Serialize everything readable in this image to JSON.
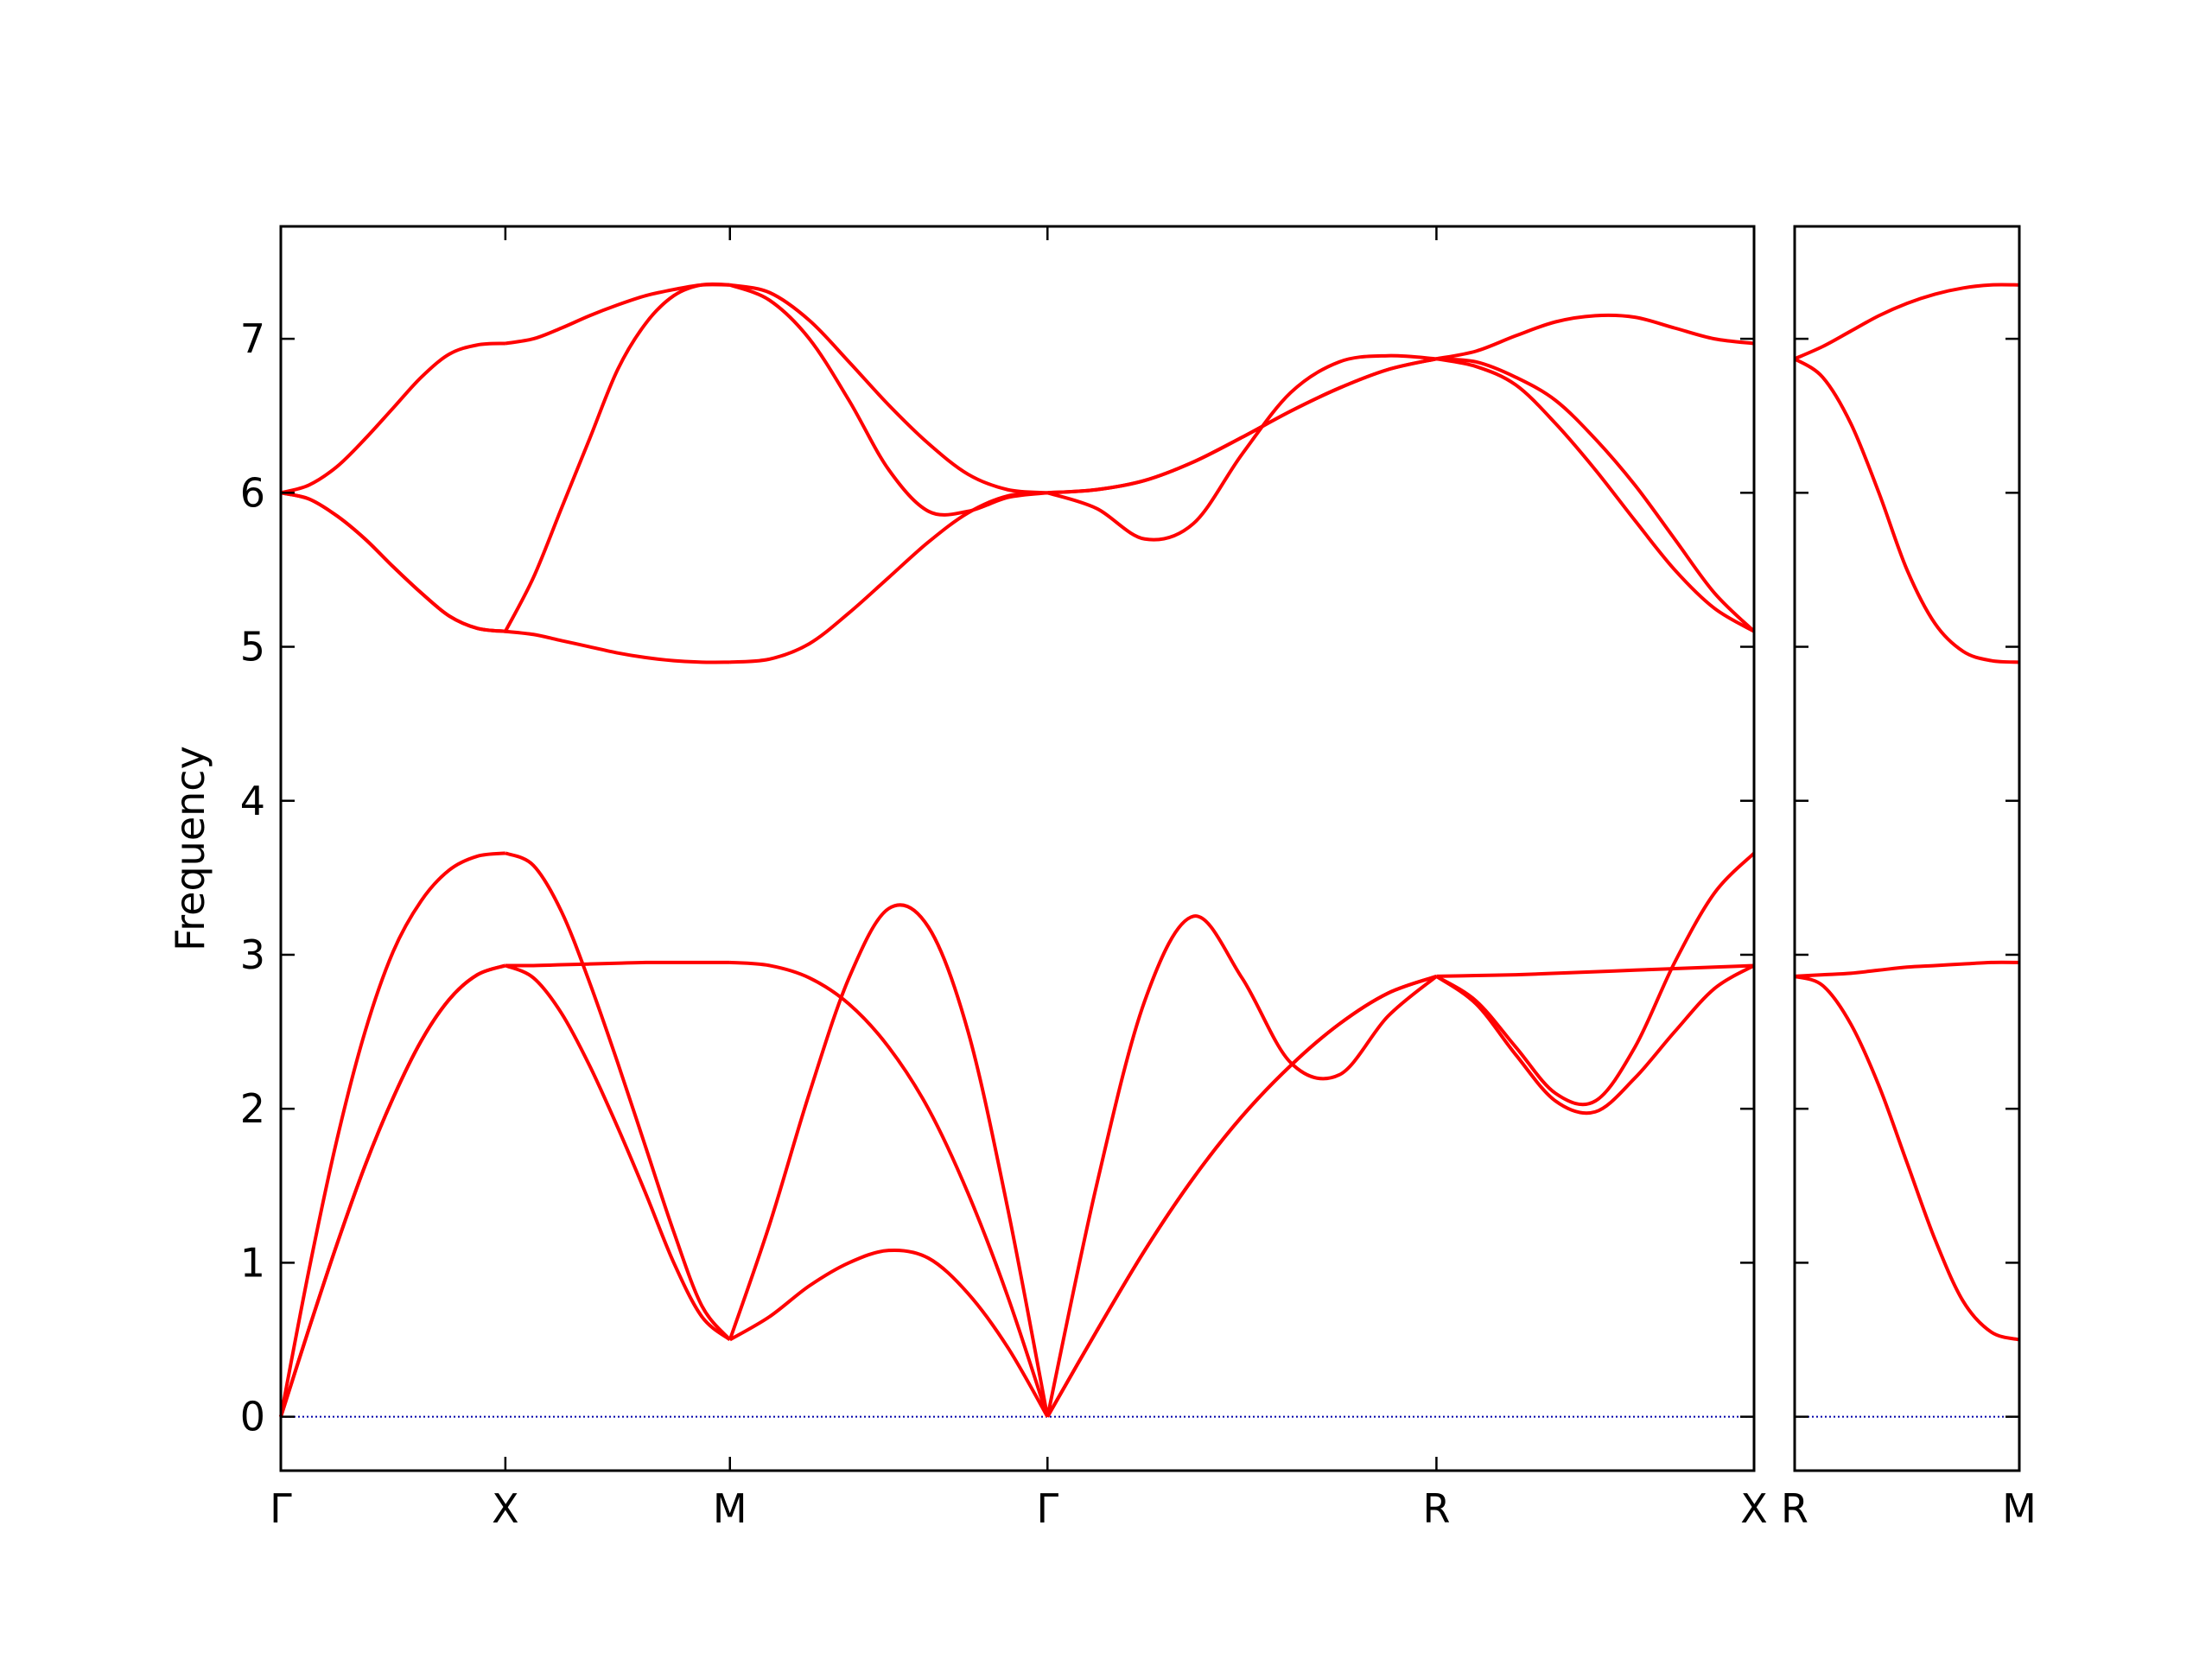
{
  "chart_data": [
    {
      "type": "line",
      "ylabel": "Frequency",
      "x": [
        0,
        0.125,
        0.25,
        0.375,
        0.5,
        0.625,
        0.75,
        0.875,
        1,
        1.125,
        1.25,
        1.375,
        1.5,
        1.625,
        1.75,
        1.875,
        2,
        2.1768,
        2.3536,
        2.5303,
        2.7071,
        2.8839,
        3.0607,
        3.2374,
        3.4142,
        3.6307,
        3.8472,
        4.0637,
        4.2802,
        4.4968,
        4.7133,
        4.9298,
        5.1463,
        5.3231,
        5.4999,
        5.6767,
        5.8535,
        6.0303,
        6.2071,
        6.3839,
        6.5607
      ],
      "xlim": [
        0,
        6.5607
      ],
      "xticks": [
        {
          "value": 0,
          "label": "Γ"
        },
        {
          "value": 1,
          "label": "X"
        },
        {
          "value": 2,
          "label": "M"
        },
        {
          "value": 3.4142,
          "label": "Γ"
        },
        {
          "value": 5.1463,
          "label": "R"
        },
        {
          "value": 6.5607,
          "label": "X"
        }
      ],
      "ylim": [
        -0.35,
        7.73
      ],
      "yticks": [
        0,
        1,
        2,
        3,
        4,
        5,
        6,
        7
      ],
      "ytick_labels": true,
      "hline": 0,
      "hline_color": "#0000aa",
      "series": [
        {
          "color": "#ff0000",
          "values": [
            0,
            0.57,
            1.12,
            1.63,
            2.07,
            2.44,
            2.71,
            2.87,
            2.93,
            2.85,
            2.62,
            2.28,
            1.88,
            1.45,
            1.0,
            0.65,
            0.5,
            0.65,
            0.85,
            1.0,
            1.08,
            1.03,
            0.8,
            0.45,
            0,
            0.55,
            1.08,
            1.55,
            1.95,
            2.28,
            2.55,
            2.75,
            2.86,
            2.68,
            2.35,
            2.05,
            1.98,
            2.2,
            2.5,
            2.78,
            2.93
          ]
        },
        {
          "color": "#ff0000",
          "values": [
            0,
            0.95,
            1.8,
            2.5,
            3.02,
            3.35,
            3.55,
            3.64,
            3.66,
            3.58,
            3.28,
            2.82,
            2.3,
            1.75,
            1.2,
            0.72,
            0.5,
            1.25,
            2.1,
            2.85,
            3.3,
            3.18,
            2.5,
            1.35,
            0,
            1.49,
            2.7,
            3.25,
            2.85,
            2.3,
            2.22,
            2.6,
            2.86,
            2.7,
            2.4,
            2.1,
            2.05,
            2.4,
            2.95,
            3.4,
            3.66
          ]
        },
        {
          "color": "#ff0000",
          "values": [
            0,
            0.57,
            1.12,
            1.63,
            2.07,
            2.44,
            2.71,
            2.87,
            2.93,
            2.93,
            2.935,
            2.94,
            2.945,
            2.95,
            2.95,
            2.95,
            2.95,
            2.93,
            2.85,
            2.68,
            2.4,
            2.0,
            1.45,
            0.78,
            0,
            0.55,
            1.08,
            1.55,
            1.95,
            2.28,
            2.55,
            2.75,
            2.86,
            2.865,
            2.87,
            2.88,
            2.89,
            2.9,
            2.91,
            2.92,
            2.93
          ]
        },
        {
          "color": "#ff0000",
          "values": [
            6.0,
            5.96,
            5.85,
            5.7,
            5.52,
            5.35,
            5.2,
            5.12,
            5.1,
            5.08,
            5.04,
            5.0,
            4.96,
            4.93,
            4.91,
            4.9,
            4.9,
            4.92,
            5.02,
            5.22,
            5.45,
            5.68,
            5.87,
            5.98,
            6.0,
            6.02,
            6.08,
            6.2,
            6.36,
            6.53,
            6.68,
            6.8,
            6.87,
            6.82,
            6.7,
            6.45,
            6.15,
            5.82,
            5.5,
            5.25,
            5.1
          ]
        },
        {
          "color": "#ff0000",
          "values": [
            6.0,
            5.96,
            5.85,
            5.7,
            5.52,
            5.35,
            5.2,
            5.12,
            5.1,
            5.45,
            5.9,
            6.35,
            6.8,
            7.1,
            7.28,
            7.35,
            7.35,
            7.3,
            7.12,
            6.85,
            6.57,
            6.32,
            6.12,
            6.02,
            6.0,
            5.9,
            5.7,
            5.8,
            6.25,
            6.65,
            6.85,
            6.89,
            6.87,
            6.85,
            6.75,
            6.6,
            6.35,
            6.05,
            5.7,
            5.35,
            5.1
          ]
        },
        {
          "color": "#ff0000",
          "values": [
            6.0,
            6.05,
            6.17,
            6.35,
            6.55,
            6.75,
            6.9,
            6.96,
            6.97,
            7.0,
            7.07,
            7.15,
            7.22,
            7.28,
            7.32,
            7.35,
            7.35,
            7.25,
            7.0,
            6.6,
            6.15,
            5.88,
            5.88,
            5.97,
            6.0,
            6.02,
            6.08,
            6.2,
            6.36,
            6.53,
            6.68,
            6.8,
            6.87,
            6.92,
            7.02,
            7.11,
            7.15,
            7.14,
            7.07,
            7.0,
            6.97
          ]
        }
      ]
    },
    {
      "type": "line",
      "x": [
        0,
        0.125,
        0.25,
        0.375,
        0.5,
        0.625,
        0.75,
        0.875,
        1
      ],
      "xlim": [
        0,
        1
      ],
      "xticks": [
        {
          "value": 0,
          "label": "R"
        },
        {
          "value": 1,
          "label": "M"
        }
      ],
      "ylim": [
        -0.35,
        7.73
      ],
      "yticks": [
        0,
        1,
        2,
        3,
        4,
        5,
        6,
        7
      ],
      "ytick_labels": false,
      "hline": 0,
      "hline_color": "#0000aa",
      "series": [
        {
          "color": "#ff0000",
          "values": [
            2.86,
            2.87,
            2.88,
            2.9,
            2.92,
            2.93,
            2.94,
            2.95,
            2.95
          ]
        },
        {
          "color": "#ff0000",
          "values": [
            2.86,
            2.8,
            2.55,
            2.15,
            1.65,
            1.15,
            0.75,
            0.55,
            0.5
          ]
        },
        {
          "color": "#ff0000",
          "values": [
            6.87,
            6.95,
            7.05,
            7.15,
            7.23,
            7.29,
            7.33,
            7.35,
            7.35
          ]
        },
        {
          "color": "#ff0000",
          "values": [
            6.87,
            6.75,
            6.45,
            6.0,
            5.5,
            5.15,
            4.97,
            4.91,
            4.9
          ]
        }
      ]
    }
  ]
}
